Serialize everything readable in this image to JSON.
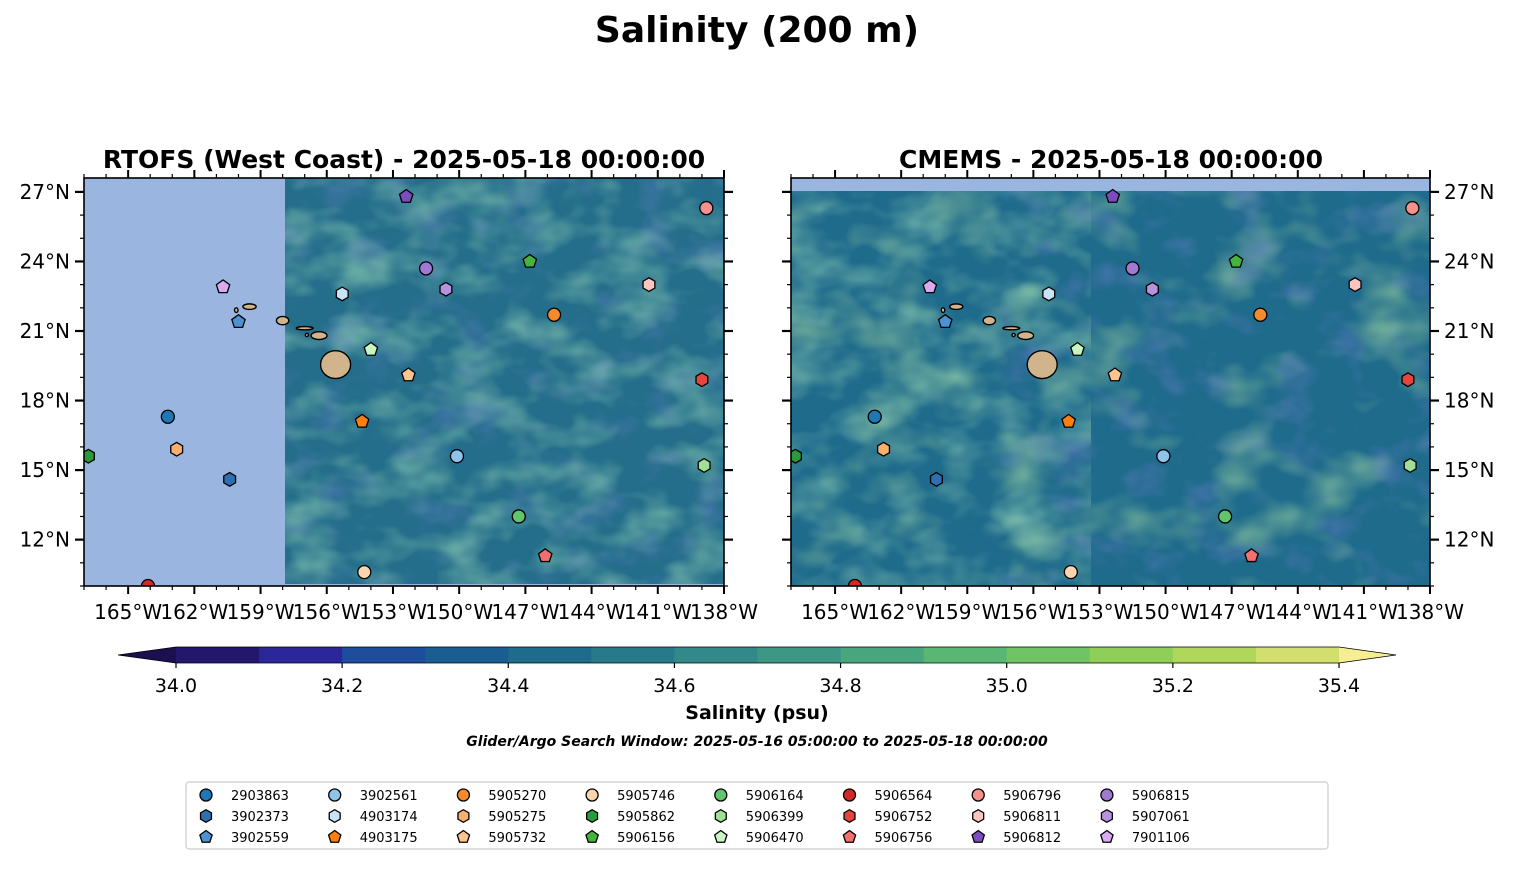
{
  "figure": {
    "title": "Salinity (200 m)",
    "footnote": "Glider/Argo Search Window: 2025-05-16 05:00:00 to 2025-05-18 00:00:00"
  },
  "chart_data": {
    "type": "heatmap",
    "title": "Salinity (200 m)",
    "panels": [
      {
        "title": "RTOFS (West Coast) - 2025-05-18 00:00:00",
        "coverage_lon": [
          -157.5,
          -138
        ],
        "coverage_lat": [
          10,
          27.6
        ]
      },
      {
        "title": "CMEMS - 2025-05-18 00:00:00",
        "coverage_lon": [
          -167,
          -138
        ],
        "coverage_lat": [
          10,
          27
        ]
      }
    ],
    "xlim": [
      -167,
      -138
    ],
    "ylim": [
      10,
      27.6
    ],
    "x_ticks": [
      -165,
      -162,
      -159,
      -156,
      -153,
      -150,
      -147,
      -144,
      -141,
      -138
    ],
    "x_tick_labels": [
      "165°W",
      "162°W",
      "159°W",
      "156°W",
      "153°W",
      "150°W",
      "147°W",
      "144°W",
      "141°W",
      "138°W"
    ],
    "y_ticks": [
      12,
      15,
      18,
      21,
      24,
      27
    ],
    "y_tick_labels": [
      "12°N",
      "15°N",
      "18°N",
      "21°N",
      "24°N",
      "27°N"
    ],
    "colorbar": {
      "label": "Salinity (psu)",
      "levels": [
        34.0,
        34.1,
        34.2,
        34.3,
        34.4,
        34.5,
        34.6,
        34.7,
        34.8,
        34.9,
        35.0,
        35.1,
        35.2,
        35.3,
        35.4
      ],
      "colors": [
        "#23166d",
        "#2b279b",
        "#1e4d9e",
        "#1a5e91",
        "#1f6b8c",
        "#287a8b",
        "#33888a",
        "#3c9785",
        "#48a67e",
        "#5ab673",
        "#70c465",
        "#8fcf57",
        "#b0d75a",
        "#d2df6e"
      ],
      "under_color": "#1b0f4f",
      "over_color": "#f6ef92",
      "tick_values": [
        34.0,
        34.2,
        34.4,
        34.6,
        34.8,
        35.0,
        35.2,
        35.4
      ],
      "tick_labels": [
        "34.0",
        "34.2",
        "34.4",
        "34.6",
        "34.8",
        "35.0",
        "35.2",
        "35.4"
      ],
      "extend": "both"
    },
    "colors": {
      "land": "#d2b48c",
      "missing": "#9ab5e0",
      "coast": "#000000",
      "frame": "#000000"
    },
    "series": [
      {
        "name": "2903863",
        "marker": "circle",
        "color": "#1f77b4",
        "x": [
          -163.2
        ],
        "y": [
          17.3
        ]
      },
      {
        "name": "3902373",
        "marker": "hexagon",
        "color": "#2f6fb0",
        "x": [
          -160.4
        ],
        "y": [
          14.6
        ]
      },
      {
        "name": "3902559",
        "marker": "pentagon",
        "color": "#4d92cf",
        "x": [
          -160.0
        ],
        "y": [
          21.4
        ]
      },
      {
        "name": "3902561",
        "marker": "circle",
        "color": "#8ec3ea",
        "x": [
          -150.1
        ],
        "y": [
          15.6
        ]
      },
      {
        "name": "4903174",
        "marker": "hexagon",
        "color": "#c9e2f5",
        "x": [
          -155.3
        ],
        "y": [
          22.6
        ]
      },
      {
        "name": "4903175",
        "marker": "pentagon",
        "color": "#ff7f0e",
        "x": [
          -154.4
        ],
        "y": [
          17.1
        ]
      },
      {
        "name": "5905270",
        "marker": "circle",
        "color": "#f58a2c",
        "x": [
          -145.7
        ],
        "y": [
          21.7
        ]
      },
      {
        "name": "5905275",
        "marker": "hexagon",
        "color": "#f9b06c",
        "x": [
          -162.8
        ],
        "y": [
          15.9
        ]
      },
      {
        "name": "5905732",
        "marker": "pentagon",
        "color": "#fcc58e",
        "x": [
          -152.3
        ],
        "y": [
          19.1
        ]
      },
      {
        "name": "5905746",
        "marker": "circle",
        "color": "#fbd5b0",
        "x": [
          -154.3
        ],
        "y": [
          10.6
        ]
      },
      {
        "name": "5905862",
        "marker": "hexagon",
        "color": "#2a9a3a",
        "x": [
          -166.8
        ],
        "y": [
          15.6
        ]
      },
      {
        "name": "5906156",
        "marker": "pentagon",
        "color": "#46b33f",
        "x": [
          -146.8
        ],
        "y": [
          24.0
        ]
      },
      {
        "name": "5906164",
        "marker": "circle",
        "color": "#63c46b",
        "x": [
          -147.3
        ],
        "y": [
          13.0
        ]
      },
      {
        "name": "5906399",
        "marker": "hexagon",
        "color": "#9fdf96",
        "x": [
          -138.9
        ],
        "y": [
          15.2
        ]
      },
      {
        "name": "5906470",
        "marker": "pentagon",
        "color": "#c9f5c0",
        "x": [
          -154.0
        ],
        "y": [
          20.2
        ]
      },
      {
        "name": "5906564",
        "marker": "circle",
        "color": "#d62728",
        "x": [
          -164.1
        ],
        "y": [
          10.0
        ]
      },
      {
        "name": "5906752",
        "marker": "hexagon",
        "color": "#e6453f",
        "x": [
          -139.0
        ],
        "y": [
          18.9
        ]
      },
      {
        "name": "5906756",
        "marker": "pentagon",
        "color": "#f07070",
        "x": [
          -146.1
        ],
        "y": [
          11.3
        ]
      },
      {
        "name": "5906796",
        "marker": "circle",
        "color": "#f5918d",
        "x": [
          -138.8
        ],
        "y": [
          26.3
        ]
      },
      {
        "name": "5906811",
        "marker": "hexagon",
        "color": "#fbc5c0",
        "x": [
          -141.4
        ],
        "y": [
          23.0
        ]
      },
      {
        "name": "5906812",
        "marker": "pentagon",
        "color": "#7d4dbf",
        "x": [
          -152.4
        ],
        "y": [
          26.8
        ]
      },
      {
        "name": "5906815",
        "marker": "circle",
        "color": "#a07ad0",
        "x": [
          -151.5
        ],
        "y": [
          23.7
        ]
      },
      {
        "name": "5907061",
        "marker": "hexagon",
        "color": "#b992df",
        "x": [
          -150.6
        ],
        "y": [
          22.8
        ]
      },
      {
        "name": "7901106",
        "marker": "pentagon",
        "color": "#dba9f0",
        "x": [
          -160.7
        ],
        "y": [
          22.9
        ]
      }
    ],
    "legend_placement": "bottom"
  }
}
